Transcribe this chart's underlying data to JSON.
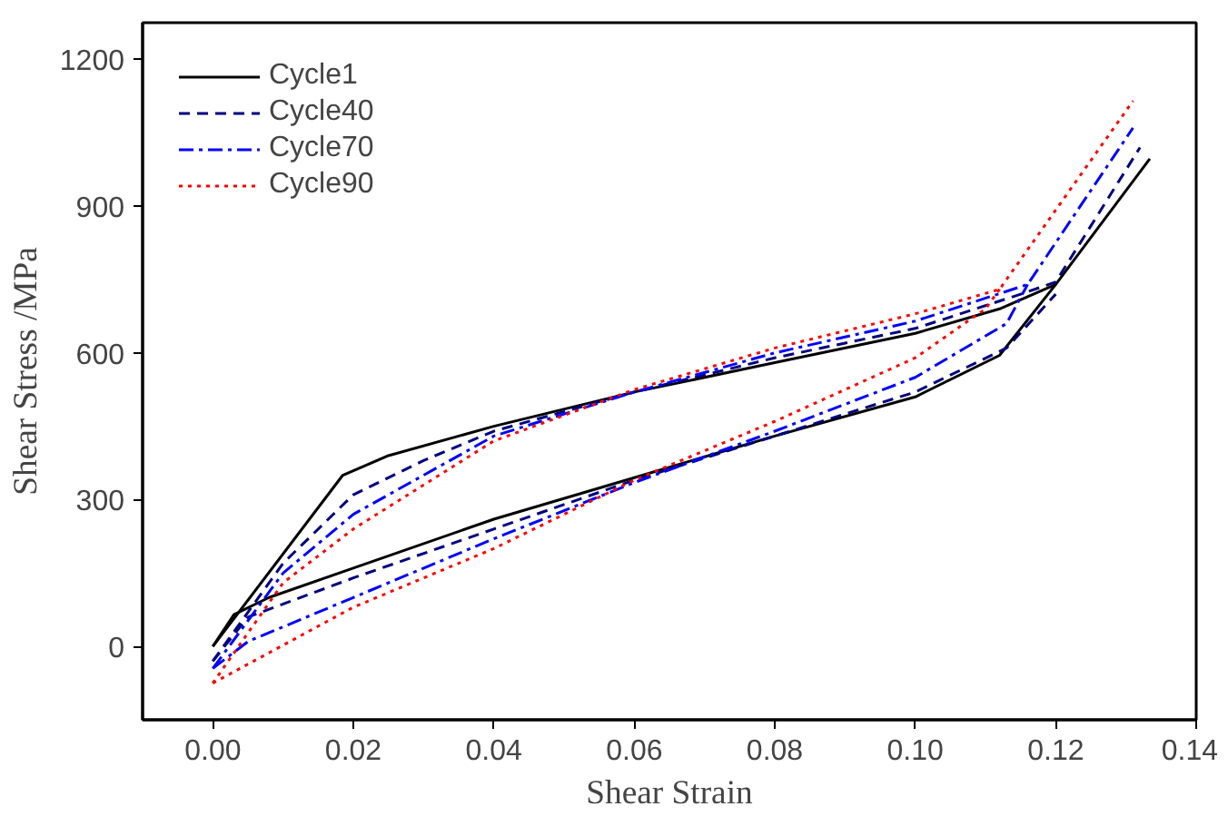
{
  "chart_data": {
    "type": "line",
    "xlabel": "Shear Strain",
    "ylabel": "Shear Stress /MPa",
    "xlim": [
      -0.01,
      0.14
    ],
    "ylim": [
      -150,
      1275
    ],
    "xticks": [
      {
        "value": 0,
        "label": "0.00"
      },
      {
        "value": 0.02,
        "label": "0.02"
      },
      {
        "value": 0.04,
        "label": "0.04"
      },
      {
        "value": 0.06,
        "label": "0.06"
      },
      {
        "value": 0.08,
        "label": "0.08"
      },
      {
        "value": 0.1,
        "label": "0.10"
      },
      {
        "value": 0.12,
        "label": "0.12"
      },
      {
        "value": 0.14,
        "label": "0.14"
      }
    ],
    "yticks": [
      0,
      300,
      600,
      900,
      1200
    ],
    "grid": false,
    "legend": "top left",
    "series": [
      {
        "name": "Cycle1",
        "color": "#000000",
        "line_style": "solid",
        "x": [
          0,
          0.0185,
          0.025,
          0.04,
          0.06,
          0.08,
          0.1,
          0.112,
          0.12,
          0.1334
        ],
        "values": [
          0,
          350,
          390,
          450,
          520,
          580,
          640,
          690,
          740,
          997
        ]
      },
      {
        "color": "#000000",
        "line_style": "solid",
        "x": [
          0,
          0.003,
          0.008,
          0.02,
          0.04,
          0.06,
          0.08,
          0.1,
          0.112,
          0.12
        ],
        "values": [
          0,
          65,
          100,
          160,
          260,
          345,
          430,
          510,
          595,
          740
        ]
      },
      {
        "name": "Cycle40",
        "color": "#000080",
        "line_style": "dashed",
        "x": [
          0,
          0.01,
          0.02,
          0.03,
          0.04,
          0.06,
          0.08,
          0.1,
          0.115,
          0.12,
          0.132
        ],
        "values": [
          -30,
          170,
          310,
          380,
          440,
          520,
          590,
          650,
          720,
          745,
          1020
        ]
      },
      {
        "color": "#000080",
        "line_style": "dashed",
        "x": [
          0,
          0.005,
          0.02,
          0.04,
          0.06,
          0.08,
          0.1,
          0.113,
          0.12
        ],
        "values": [
          -30,
          60,
          140,
          240,
          340,
          430,
          520,
          610,
          720
        ]
      },
      {
        "name": "Cycle70",
        "color": "#0000ff",
        "line_style": "dashdot",
        "x": [
          0,
          0.01,
          0.02,
          0.03,
          0.04,
          0.06,
          0.08,
          0.1,
          0.116,
          0.131
        ],
        "values": [
          -45,
          150,
          270,
          350,
          430,
          520,
          600,
          665,
          740,
          1060
        ]
      },
      {
        "color": "#0000ff",
        "line_style": "dashdot",
        "x": [
          0,
          0.005,
          0.02,
          0.04,
          0.06,
          0.08,
          0.1,
          0.113,
          0.116
        ],
        "values": [
          -45,
          10,
          100,
          220,
          335,
          440,
          550,
          660,
          740
        ]
      },
      {
        "name": "Cycle90",
        "color": "#ff0000",
        "line_style": "dotted",
        "x": [
          0,
          0.01,
          0.02,
          0.03,
          0.04,
          0.06,
          0.08,
          0.1,
          0.112,
          0.131
        ],
        "values": [
          -75,
          130,
          240,
          330,
          420,
          525,
          610,
          680,
          730,
          1115
        ]
      },
      {
        "color": "#ff0000",
        "line_style": "dotted",
        "x": [
          0,
          0.02,
          0.04,
          0.06,
          0.08,
          0.1,
          0.11,
          0.112
        ],
        "values": [
          -75,
          80,
          200,
          340,
          460,
          590,
          690,
          730
        ]
      }
    ]
  }
}
